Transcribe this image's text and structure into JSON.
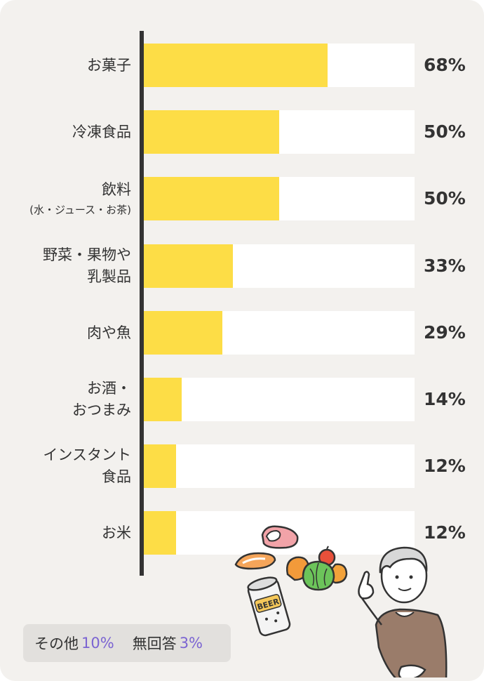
{
  "chart_data": {
    "type": "bar",
    "orientation": "horizontal",
    "unit": "%",
    "xlim": [
      0,
      100
    ],
    "categories": [
      {
        "lines": [
          "お菓子"
        ]
      },
      {
        "lines": [
          "冷凍食品"
        ]
      },
      {
        "lines": [
          "飲料",
          "(水・ジュース・お茶)"
        ]
      },
      {
        "lines": [
          "野菜・果物や",
          "乳製品"
        ]
      },
      {
        "lines": [
          "肉や魚"
        ]
      },
      {
        "lines": [
          "お酒・",
          "おつまみ"
        ]
      },
      {
        "lines": [
          "インスタント",
          "食品"
        ]
      },
      {
        "lines": [
          "お米"
        ]
      }
    ],
    "values": [
      68,
      50,
      50,
      33,
      29,
      14,
      12,
      12
    ],
    "value_labels": [
      "68%",
      "50%",
      "50%",
      "33%",
      "29%",
      "14%",
      "12%",
      "12%"
    ],
    "grid": false,
    "colors": {
      "bar": "#fddd46",
      "track": "#ffffff",
      "axis": "#333333",
      "background": "#f3f1ee"
    }
  },
  "other": {
    "label": "その他",
    "value": "10%",
    "label2": "無回答",
    "value2": "3%",
    "accent": "#7b64d2"
  },
  "illustration": {
    "icons": [
      "meat-icon",
      "salmon-icon",
      "vegetables-icon",
      "beer-can-icon",
      "pointing-man-icon"
    ],
    "can_text": "BEER"
  }
}
